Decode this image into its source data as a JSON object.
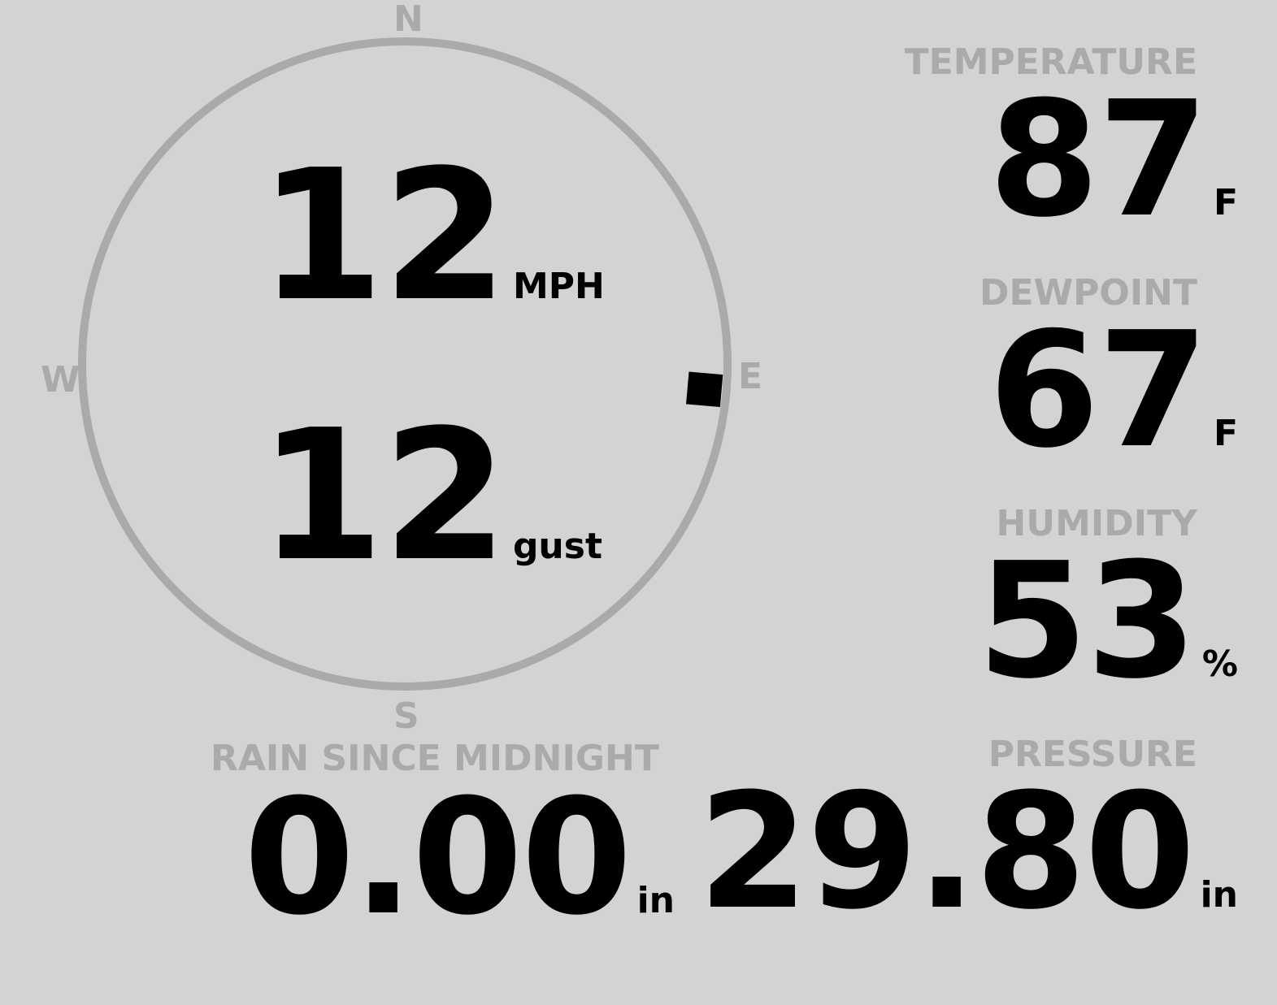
{
  "compass": {
    "north": "N",
    "south": "S",
    "east": "E",
    "west": "W",
    "wind_direction_deg": 95,
    "ring_color": "#aaaaaa"
  },
  "wind": {
    "speed": "12",
    "speed_unit": "MPH",
    "gust": "12",
    "gust_unit": "gust"
  },
  "temperature": {
    "label": "TEMPERATURE",
    "value": "87",
    "unit": "F"
  },
  "dewpoint": {
    "label": "DEWPOINT",
    "value": "67",
    "unit": "F"
  },
  "humidity": {
    "label": "HUMIDITY",
    "value": "53",
    "unit": "%"
  },
  "rain": {
    "label": "RAIN SINCE MIDNIGHT",
    "value": "0.00",
    "unit": "in"
  },
  "pressure": {
    "label": "PRESSURE",
    "value": "29.80",
    "unit": "in"
  },
  "colors": {
    "background": "#d3d3d3",
    "label": "#aaaaaa",
    "value": "#000000"
  }
}
